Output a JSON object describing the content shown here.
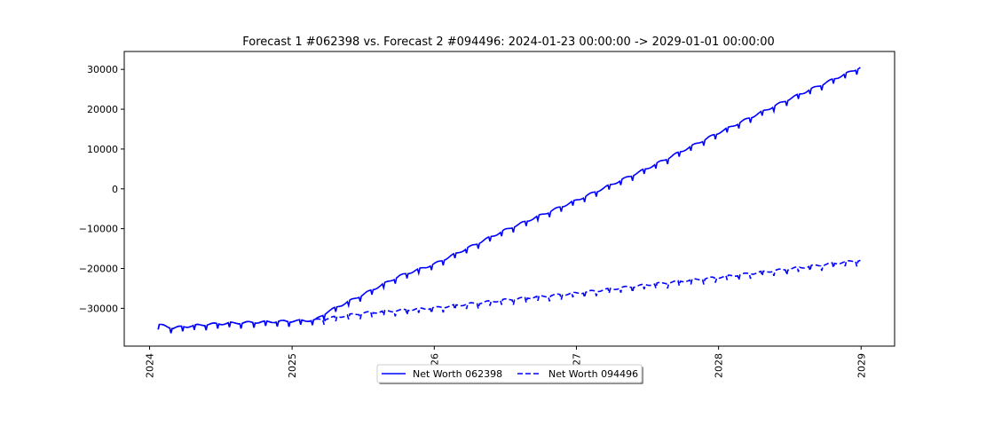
{
  "chart_data": {
    "type": "line",
    "title": "Forecast 1 #062398 vs. Forecast 2 #094496: 2024-01-23 00:00:00 -> 2029-01-01 00:00:00",
    "xlabel": "",
    "ylabel": "",
    "x_ticks": [
      "2024",
      "2025",
      "2026",
      "2027",
      "2028",
      "2029"
    ],
    "y_ticks": [
      30000,
      20000,
      10000,
      0,
      -10000,
      -20000,
      -30000
    ],
    "y_tick_labels": [
      "30000",
      "20000",
      "10000",
      "0",
      "−10000",
      "−20000",
      "−30000"
    ],
    "xlim": [
      "2023-10-28",
      "2029-03-28"
    ],
    "ylim": [
      -39500,
      34500
    ],
    "grid": false,
    "legend_position": "bottom-center",
    "series": [
      {
        "name": "Net Worth 062398",
        "style": "solid",
        "color": "#0000ff",
        "x": [
          "2024-01-23",
          "2024-03-01",
          "2024-06-01",
          "2024-09-01",
          "2024-12-01",
          "2025-03-01",
          "2025-04-01",
          "2025-07-01",
          "2025-10-01",
          "2026-01-01",
          "2026-07-01",
          "2027-01-01",
          "2027-07-01",
          "2028-01-01",
          "2028-07-01",
          "2029-01-01"
        ],
        "y": [
          -34700,
          -35500,
          -34600,
          -34200,
          -33900,
          -33600,
          -31500,
          -27200,
          -22600,
          -19500,
          -11000,
          -3500,
          4500,
          13500,
          22000,
          30000
        ]
      },
      {
        "name": "Net Worth 094496",
        "style": "dashed",
        "color": "#0000ff",
        "x": [
          "2024-01-23",
          "2024-03-01",
          "2024-06-01",
          "2024-09-01",
          "2024-12-01",
          "2025-03-01",
          "2025-07-01",
          "2026-01-01",
          "2026-07-01",
          "2027-01-01",
          "2027-07-01",
          "2028-01-01",
          "2028-07-01",
          "2029-01-01"
        ],
        "y": [
          -34700,
          -35500,
          -34600,
          -34200,
          -33900,
          -33600,
          -31800,
          -30500,
          -28500,
          -26800,
          -24700,
          -22800,
          -20700,
          -18500
        ]
      }
    ]
  }
}
